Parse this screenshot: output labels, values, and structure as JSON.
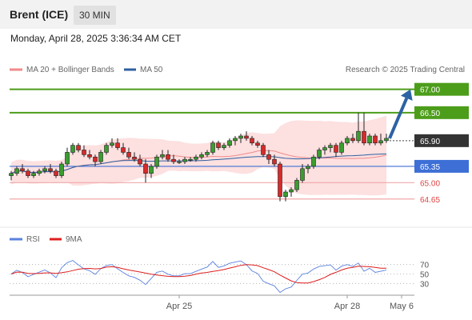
{
  "header": {
    "title": "Brent (ICE)",
    "interval": "30 MIN"
  },
  "datetime": "Monday, April 28, 2025 3:36:34 AM CET",
  "legend": {
    "ma20": "MA 20 + Bollinger Bands",
    "ma50": "MA 50",
    "credit": "Research © 2025 Trading Central"
  },
  "rsi_legend": {
    "rsi": "RSI",
    "ma9": "9MA"
  },
  "colors": {
    "ma20": "#f08a8a",
    "ma50": "#2f5f9f",
    "band": "#fde0e0",
    "resistance": "#4c9d1a",
    "support": "#3d6fd6",
    "support_light": "#f0a8a8",
    "last": "#333333",
    "arrow": "#2d62a3",
    "rsi": "#5a82e0",
    "rsi_ma": "#dd1f1f"
  },
  "chart_data": {
    "type": "candlestick",
    "title": "Brent (ICE)",
    "ylim": [
      64.2,
      67.2
    ],
    "levels": [
      {
        "value": 67.0,
        "label": "67.00",
        "kind": "resistance"
      },
      {
        "value": 66.5,
        "label": "66.50",
        "kind": "resistance"
      },
      {
        "value": 65.9,
        "label": "65.90",
        "kind": "last"
      },
      {
        "value": 65.35,
        "label": "65.35",
        "kind": "support"
      },
      {
        "value": 65.0,
        "label": "65.00",
        "kind": "support_light"
      },
      {
        "value": 64.65,
        "label": "64.65",
        "kind": "support_light"
      }
    ],
    "x_labels": [
      "Apr 25",
      "Apr 28",
      "May 6"
    ],
    "candles": [
      [
        65.15,
        65.25,
        65.05,
        65.2
      ],
      [
        65.2,
        65.35,
        65.15,
        65.3
      ],
      [
        65.3,
        65.4,
        65.2,
        65.25
      ],
      [
        65.25,
        65.3,
        65.1,
        65.15
      ],
      [
        65.15,
        65.25,
        65.1,
        65.2
      ],
      [
        65.2,
        65.3,
        65.15,
        65.25
      ],
      [
        65.25,
        65.35,
        65.2,
        65.3
      ],
      [
        65.3,
        65.4,
        65.2,
        65.25
      ],
      [
        65.25,
        65.3,
        65.1,
        65.15
      ],
      [
        65.15,
        65.45,
        65.1,
        65.4
      ],
      [
        65.4,
        65.75,
        65.35,
        65.65
      ],
      [
        65.65,
        65.85,
        65.6,
        65.8
      ],
      [
        65.8,
        65.85,
        65.65,
        65.7
      ],
      [
        65.7,
        65.8,
        65.55,
        65.6
      ],
      [
        65.6,
        65.7,
        65.5,
        65.55
      ],
      [
        65.55,
        65.6,
        65.35,
        65.45
      ],
      [
        65.45,
        65.7,
        65.4,
        65.65
      ],
      [
        65.65,
        65.85,
        65.6,
        65.8
      ],
      [
        65.8,
        65.95,
        65.75,
        65.85
      ],
      [
        65.85,
        65.95,
        65.7,
        65.75
      ],
      [
        65.75,
        65.85,
        65.6,
        65.65
      ],
      [
        65.65,
        65.75,
        65.5,
        65.55
      ],
      [
        65.55,
        65.65,
        65.45,
        65.5
      ],
      [
        65.5,
        65.6,
        65.35,
        65.4
      ],
      [
        65.4,
        65.5,
        65.0,
        65.2
      ],
      [
        65.2,
        65.4,
        65.1,
        65.35
      ],
      [
        65.35,
        65.6,
        65.3,
        65.55
      ],
      [
        65.55,
        65.7,
        65.5,
        65.6
      ],
      [
        65.6,
        65.7,
        65.45,
        65.5
      ],
      [
        65.5,
        65.6,
        65.4,
        65.45
      ],
      [
        65.45,
        65.5,
        65.4,
        65.45
      ],
      [
        65.45,
        65.55,
        65.4,
        65.5
      ],
      [
        65.5,
        65.55,
        65.45,
        65.5
      ],
      [
        65.5,
        65.6,
        65.45,
        65.55
      ],
      [
        65.55,
        65.65,
        65.5,
        65.6
      ],
      [
        65.6,
        65.7,
        65.55,
        65.65
      ],
      [
        65.65,
        65.9,
        65.6,
        65.85
      ],
      [
        65.85,
        65.9,
        65.7,
        65.75
      ],
      [
        65.75,
        65.85,
        65.7,
        65.8
      ],
      [
        65.8,
        65.95,
        65.75,
        65.9
      ],
      [
        65.9,
        66.0,
        65.8,
        65.95
      ],
      [
        65.95,
        66.05,
        65.85,
        66.0
      ],
      [
        66.0,
        66.1,
        65.9,
        65.95
      ],
      [
        65.95,
        66.0,
        65.8,
        65.85
      ],
      [
        65.85,
        65.9,
        65.75,
        65.8
      ],
      [
        65.8,
        65.85,
        65.55,
        65.6
      ],
      [
        65.6,
        65.7,
        65.4,
        65.5
      ],
      [
        65.5,
        65.6,
        65.35,
        65.4
      ],
      [
        65.4,
        65.45,
        64.6,
        64.7
      ],
      [
        64.7,
        64.85,
        64.6,
        64.8
      ],
      [
        64.8,
        64.9,
        64.7,
        64.85
      ],
      [
        64.85,
        65.1,
        64.8,
        65.05
      ],
      [
        65.05,
        65.4,
        65.0,
        65.3
      ],
      [
        65.3,
        65.4,
        65.2,
        65.35
      ],
      [
        65.35,
        65.6,
        65.3,
        65.55
      ],
      [
        65.55,
        65.75,
        65.5,
        65.7
      ],
      [
        65.7,
        65.8,
        65.6,
        65.75
      ],
      [
        65.75,
        65.85,
        65.65,
        65.8
      ],
      [
        65.8,
        65.85,
        65.55,
        65.65
      ],
      [
        65.65,
        65.9,
        65.6,
        65.85
      ],
      [
        65.85,
        66.0,
        65.8,
        65.95
      ],
      [
        65.95,
        66.05,
        65.85,
        65.9
      ],
      [
        65.9,
        66.5,
        65.85,
        66.1
      ],
      [
        66.1,
        66.5,
        65.8,
        65.85
      ],
      [
        65.85,
        66.05,
        65.8,
        66.0
      ],
      [
        66.0,
        66.05,
        65.8,
        65.85
      ],
      [
        65.85,
        66.05,
        65.8,
        65.9
      ],
      [
        65.9,
        66.05,
        65.85,
        65.95
      ]
    ],
    "rsi_panel": {
      "levels": [
        70,
        50,
        30
      ],
      "series": [
        "RSI",
        "9MA"
      ]
    }
  }
}
